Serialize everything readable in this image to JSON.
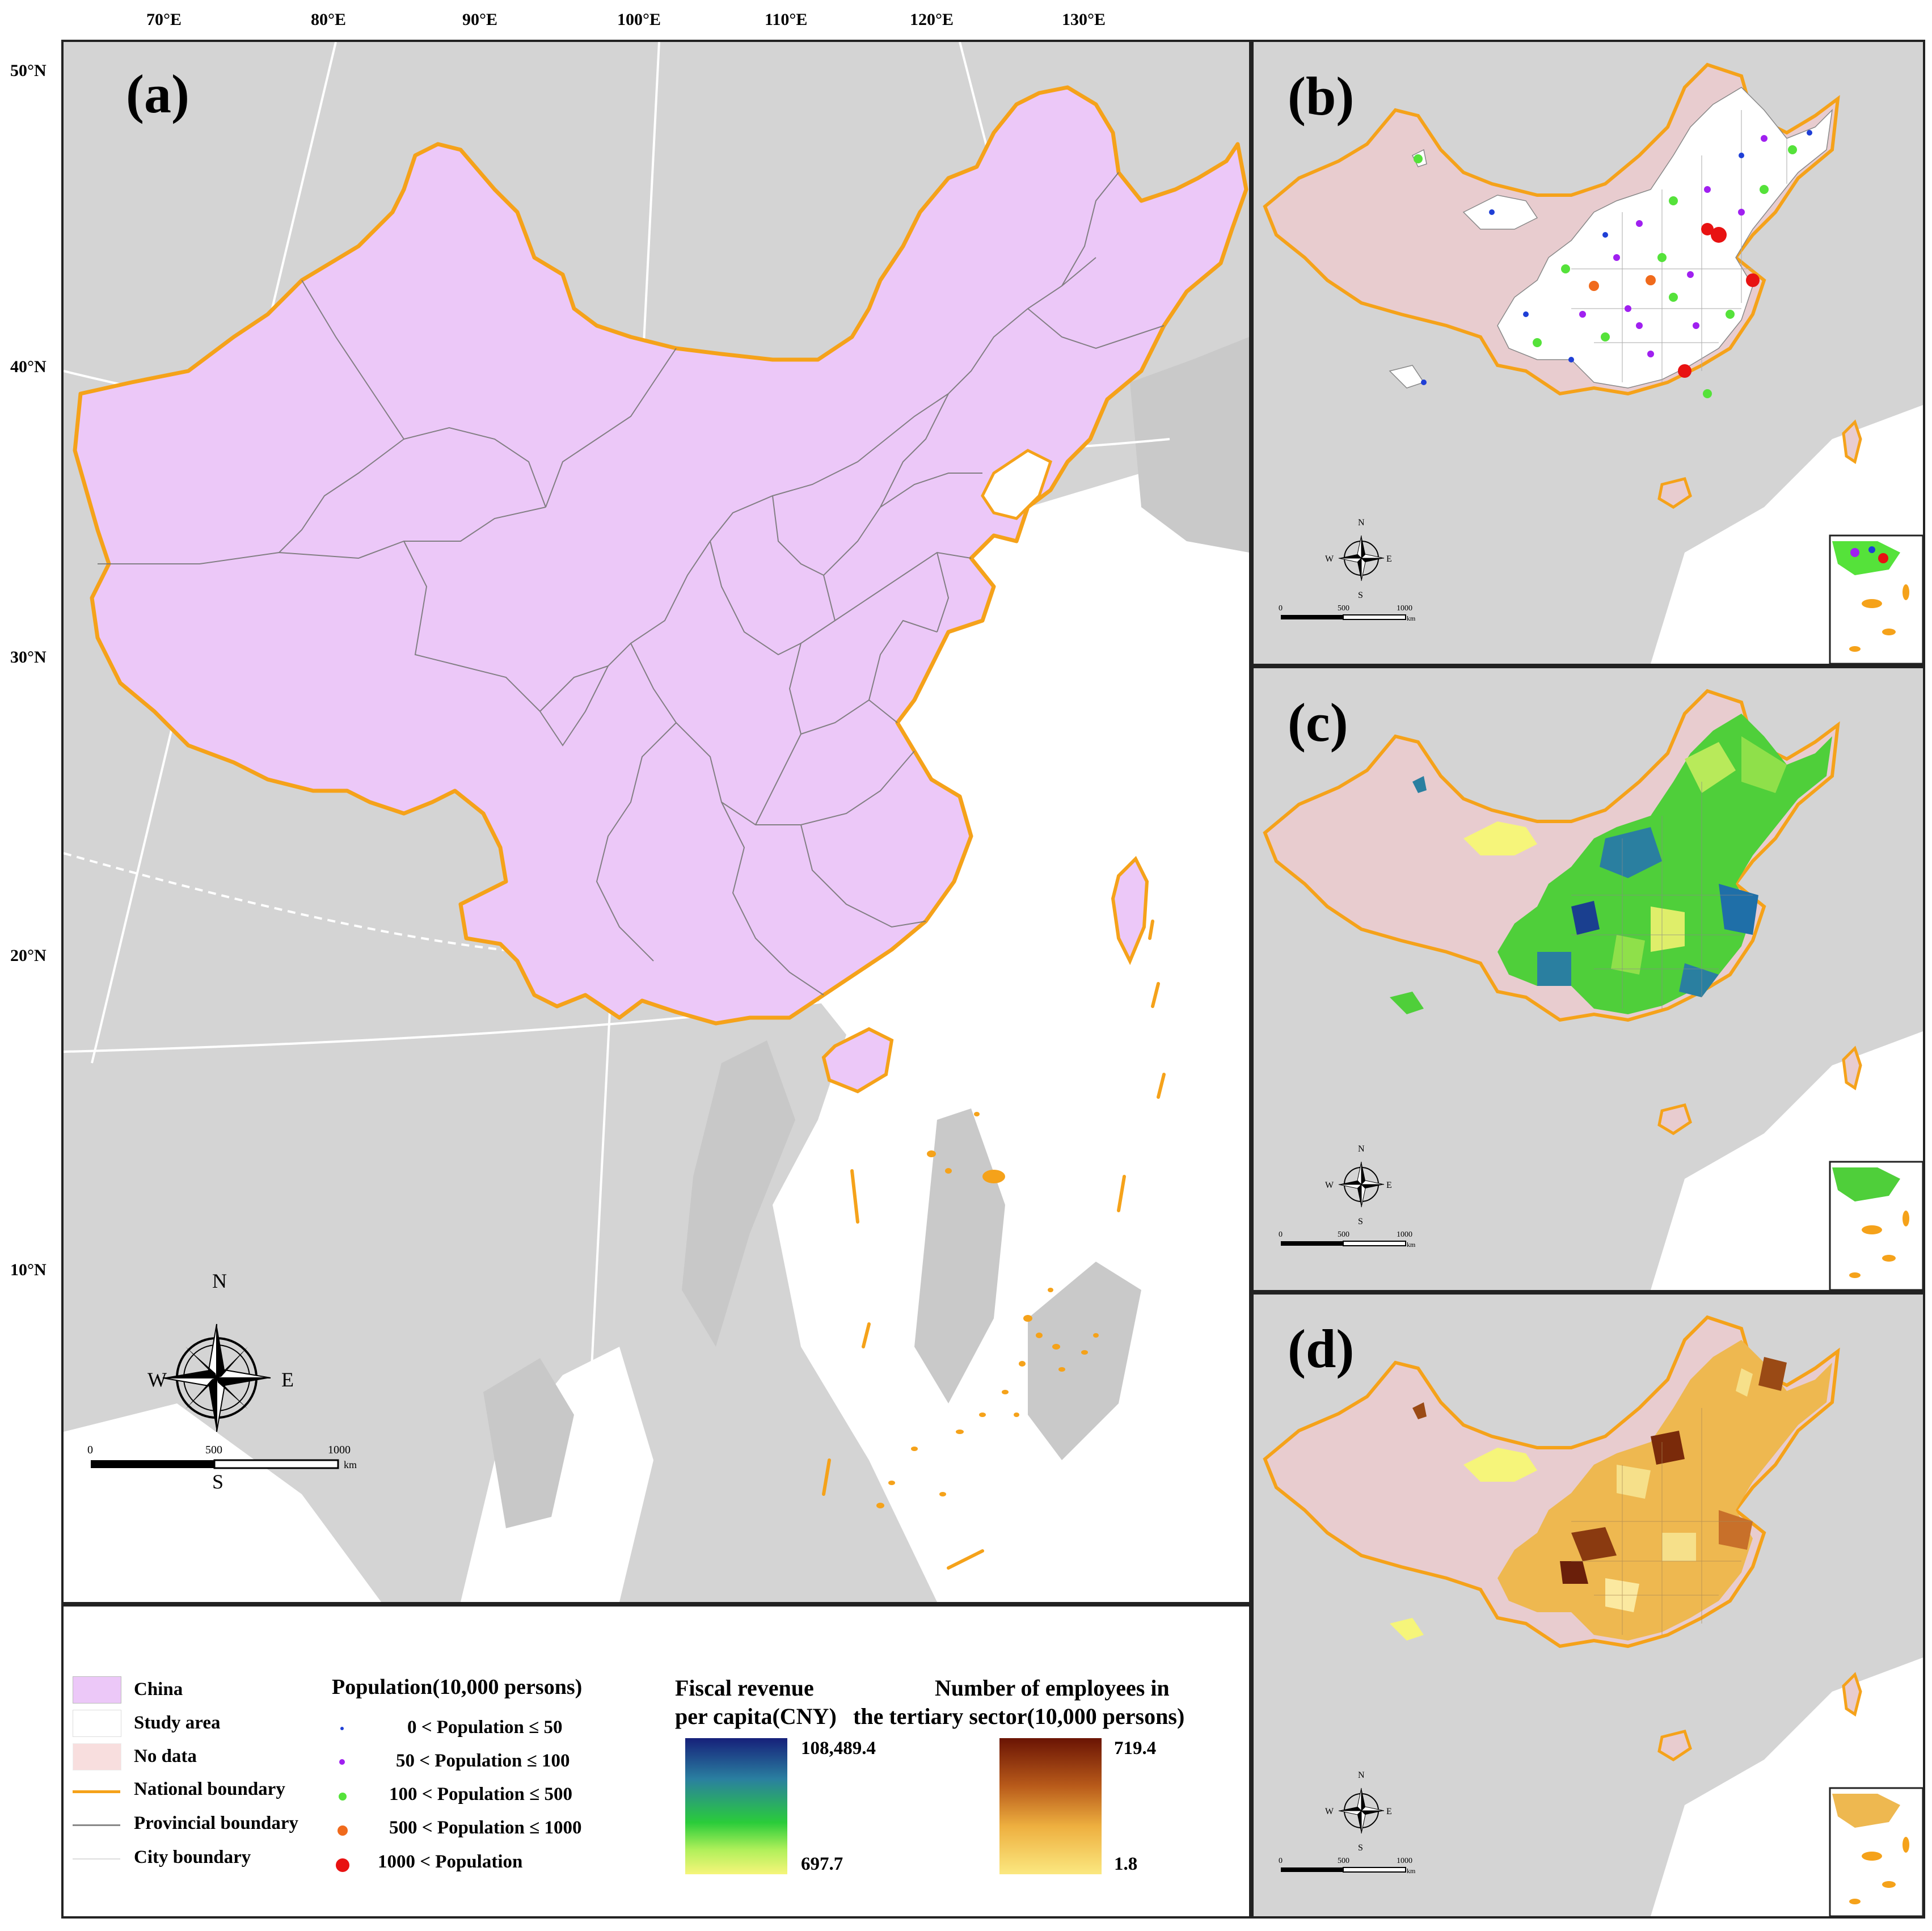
{
  "panels": {
    "a": {
      "label": "(a)"
    },
    "b": {
      "label": "(b)"
    },
    "c": {
      "label": "(c)"
    },
    "d": {
      "label": "(d)"
    }
  },
  "graticule": {
    "lon_labels": [
      "70°E",
      "80°E",
      "90°E",
      "100°E",
      "110°E",
      "120°E",
      "130°E"
    ],
    "lat_labels": [
      "50°N",
      "40°N",
      "30°N",
      "20°N",
      "10°N"
    ]
  },
  "compass": {
    "n": "N",
    "s": "S",
    "e": "E",
    "w": "W"
  },
  "scalebar": {
    "t0": "0",
    "t1": "500",
    "t2": "1000",
    "unit": "km"
  },
  "legend": {
    "china": "China",
    "study_area": "Study area",
    "no_data": "No data",
    "national_boundary": "National boundary",
    "provincial_boundary": "Provincial boundary",
    "city_boundary": "City boundary",
    "population_title": "Population(10,000 persons)",
    "pop_classes": [
      "0 < Population ≤ 50",
      "50 < Population ≤ 100",
      "100 < Population ≤ 500",
      "500 < Population ≤ 1000",
      "1000 < Population"
    ],
    "fiscal_title_1": "Fiscal revenue",
    "fiscal_title_2": "per capita(CNY)",
    "fiscal_max": "108,489.4",
    "fiscal_min": "697.7",
    "employees_title_1": "Number of employees in",
    "employees_title_2": "the tertiary sector(10,000 persons)",
    "employees_max": "719.4",
    "employees_min": "1.8"
  },
  "colors": {
    "china_fill": "#ecc8f8",
    "national_boundary": "#f5a21a",
    "no_data": "#e8cccf",
    "background_land": "#d3d3d3",
    "sea": "#ffffff",
    "pop_colors": [
      "#1f3fd6",
      "#a020f0",
      "#55e23a",
      "#f06a1c",
      "#e81212"
    ]
  }
}
